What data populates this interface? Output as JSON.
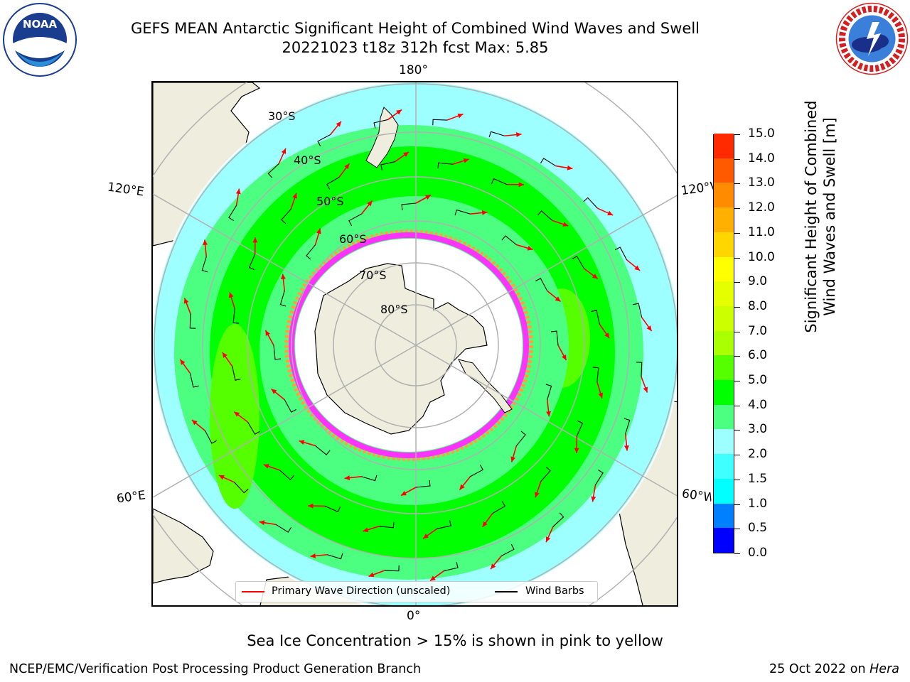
{
  "header": {
    "title_line1": "GEFS MEAN Antarctic Significant Height of Combined Wind Waves and Swell",
    "title_line2": "20221023 t18z 312h fcst   Max: 5.85"
  },
  "logos": {
    "left": {
      "name": "NOAA logo",
      "text": "NOAA",
      "ring_text": "NATIONAL OCEANIC AND ATMOSPHERIC ADMINISTRATION · U.S. DEPARTMENT OF COMMERCE"
    },
    "right": {
      "name": "National Weather Service logo",
      "ring_text": "NATIONAL WEATHER SERVICE"
    }
  },
  "map": {
    "projection": "south polar stereographic",
    "longitude_labels": {
      "top": "180°",
      "bottom": "0°",
      "upper_left": "120°E",
      "upper_right": "120°W",
      "lower_left": "60°E",
      "lower_right": "60°W"
    },
    "latitude_labels": [
      "30°S",
      "40°S",
      "50°S",
      "60°S",
      "70°S",
      "80°S"
    ],
    "colors": {
      "land": "#efedde",
      "sea_ice_pink": "#ff33ff",
      "sea_ice_orange": "#ffa040",
      "wave_arrow": "#ff0000",
      "wind_barb": "#000000",
      "grid": "#b0b0b0"
    }
  },
  "colorbar": {
    "title_line1": "Significant Height of Combined",
    "title_line2": "Wind Waves and Swell [m]",
    "ticks": [
      "0.0",
      "0.5",
      "1.0",
      "1.5",
      "2.0",
      "3.0",
      "4.0",
      "5.0",
      "6.0",
      "7.0",
      "8.0",
      "9.0",
      "10.0",
      "11.0",
      "12.0",
      "13.0",
      "14.0",
      "15.0"
    ],
    "colors": [
      "#0000ff",
      "#0080ff",
      "#00ffff",
      "#40ffff",
      "#9dffff",
      "#4dff80",
      "#00ff00",
      "#55ff00",
      "#aaff00",
      "#ccff00",
      "#e6ff00",
      "#ffff00",
      "#ffd700",
      "#ffb000",
      "#ff8c00",
      "#ff5a00",
      "#ff2a00"
    ]
  },
  "legend": {
    "items": [
      {
        "label": "Primary Wave Direction (unscaled)",
        "color": "#ff0000"
      },
      {
        "label": "Wind Barbs",
        "color": "#000000"
      }
    ]
  },
  "footer": {
    "note": "Sea Ice Concentration > 15% is shown in pink to yellow",
    "left": "NCEP/EMC/Verification Post Processing Product Generation Branch",
    "right_date": "25 Oct 2022 on",
    "right_host": "Hera"
  }
}
